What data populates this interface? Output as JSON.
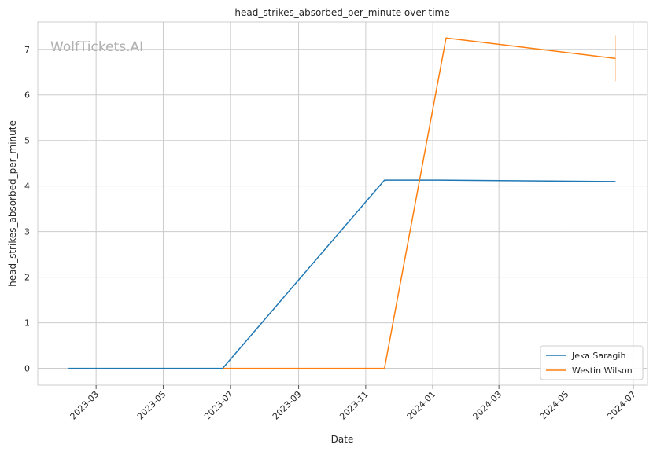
{
  "chart_data": {
    "type": "line",
    "title": "head_strikes_absorbed_per_minute over time",
    "xlabel": "Date",
    "ylabel": "head_strikes_absorbed_per_minute",
    "watermark": "WolfTickets.AI",
    "x_ticks": [
      "2023-03",
      "2023-05",
      "2023-07",
      "2023-09",
      "2023-11",
      "2024-01",
      "2024-03",
      "2024-05",
      "2024-07"
    ],
    "y_ticks": [
      "0",
      "1",
      "2",
      "3",
      "4",
      "5",
      "6",
      "7"
    ],
    "xlim": [
      "2023-01-07",
      "2024-07-14"
    ],
    "ylim": [
      -0.37,
      7.6
    ],
    "grid": true,
    "legend_position": "bottom-right",
    "series": [
      {
        "name": "Jeka Saragih",
        "color": "#1f77b4",
        "points": [
          {
            "x": "2023-02-04",
            "y": 0
          },
          {
            "x": "2023-06-24",
            "y": 0
          },
          {
            "x": "2023-11-18",
            "y": 4.13
          },
          {
            "x": "2024-01-06",
            "y": 4.13
          },
          {
            "x": "2024-06-15",
            "y": 4.1
          }
        ]
      },
      {
        "name": "Westin Wilson",
        "color": "#ff7f0e",
        "points": [
          {
            "x": "2023-06-24",
            "y": 0
          },
          {
            "x": "2023-11-18",
            "y": 0
          },
          {
            "x": "2024-01-13",
            "y": 7.25
          },
          {
            "x": "2024-06-15",
            "y": 6.8
          }
        ],
        "error_bar": {
          "x": "2024-06-15",
          "low": 6.3,
          "high": 7.3
        }
      }
    ]
  }
}
